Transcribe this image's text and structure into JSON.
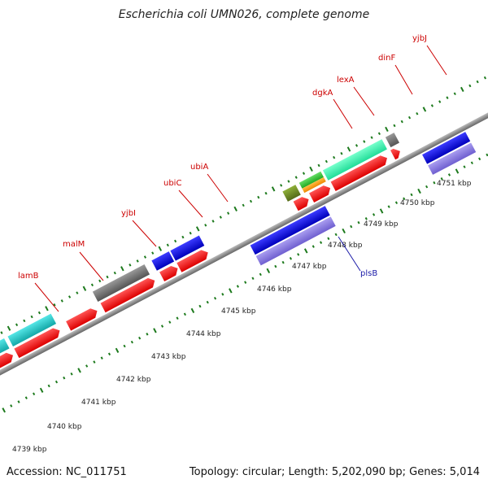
{
  "header": {
    "title": "Escherichia coli UMN026, complete genome"
  },
  "footer": {
    "accession": "Accession: NC_011751",
    "summary": "Topology: circular; Length: 5,202,090 bp; Genes: 5,014"
  },
  "colors": {
    "red": "#ee1111",
    "cyan": "#22c4c4",
    "gray": "#6a6a6a",
    "blue": "#1010dd",
    "lavender": "#8877dd",
    "olive": "#6b8e23",
    "green": "#33cc33",
    "orange": "#ff9900",
    "teal": "#33eea0",
    "backbone": "#888888",
    "dots": "#1d7a1d"
  },
  "scale": {
    "unit": "kbp",
    "labels": [
      "4739 kbp",
      "4740 kbp",
      "4741 kbp",
      "4742 kbp",
      "4743 kbp",
      "4744 kbp",
      "4745 kbp",
      "4746 kbp",
      "4747 kbp",
      "4748 kbp",
      "4749 kbp",
      "4750 kbp",
      "4751 kbp"
    ]
  },
  "gene_labels": {
    "lamB": "lamB",
    "malM": "malM",
    "yjbI": "yjbI",
    "ubiC": "ubiC",
    "ubiA": "ubiA",
    "dgkA": "dgkA",
    "lexA": "lexA",
    "dinF": "dinF",
    "yjbJ": "yjbJ",
    "plsB": "plsB"
  }
}
